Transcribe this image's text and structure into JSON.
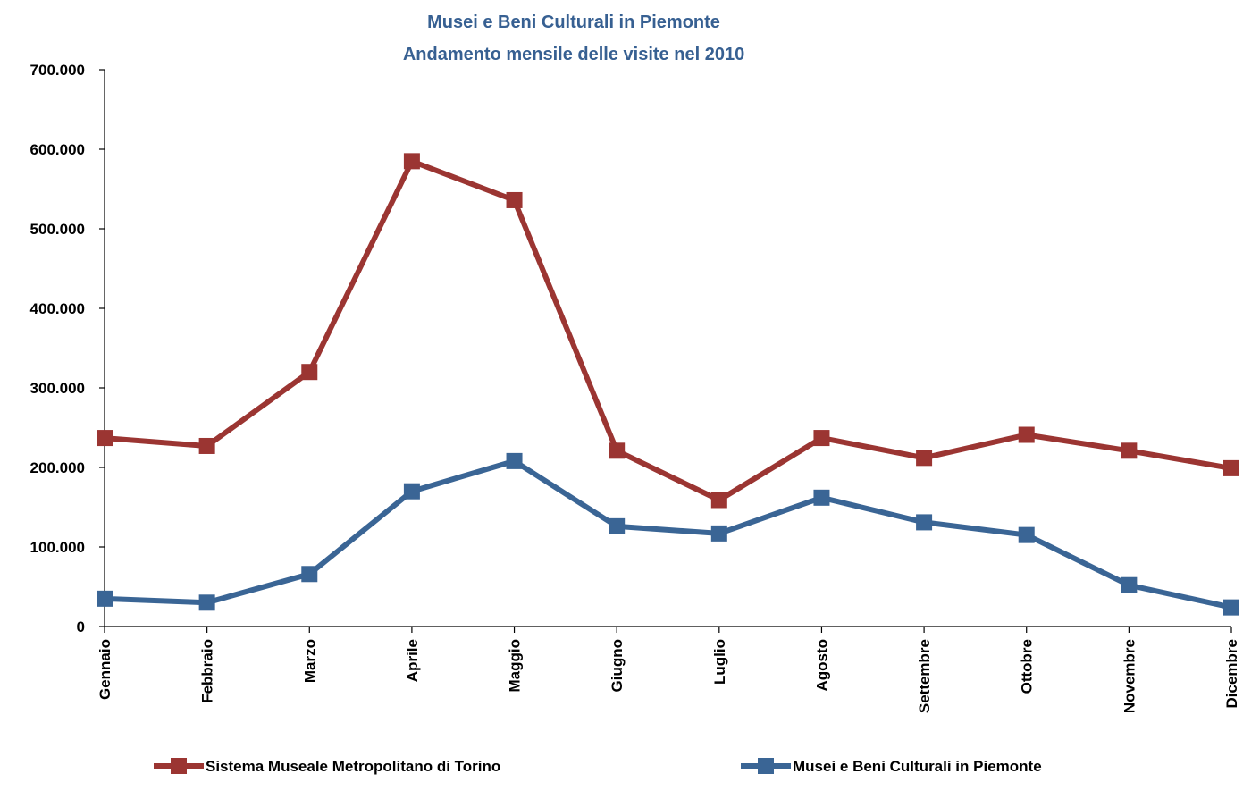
{
  "chart_data": {
    "type": "line",
    "title": "Musei e Beni Culturali in Piemonte",
    "subtitle": "Andamento mensile delle visite nel 2010",
    "xlabel": "",
    "ylabel": "",
    "categories": [
      "Gennaio",
      "Febbraio",
      "Marzo",
      "Aprile",
      "Maggio",
      "Giugno",
      "Luglio",
      "Agosto",
      "Settembre",
      "Ottobre",
      "Novembre",
      "Dicembre"
    ],
    "ylim": [
      0,
      700000
    ],
    "yticks": [
      0,
      100000,
      200000,
      300000,
      400000,
      500000,
      600000,
      700000
    ],
    "ytick_labels": [
      "0",
      "100.000",
      "200.000",
      "300.000",
      "400.000",
      "500.000",
      "600.000",
      "700.000"
    ],
    "grid": false,
    "legend_position": "bottom",
    "series": [
      {
        "name": "Sistema Museale Metropolitano di Torino",
        "color": "#9B3532",
        "marker": "square",
        "values": [
          237000,
          227000,
          320000,
          585000,
          536000,
          221000,
          159000,
          237000,
          212000,
          241000,
          221000,
          199000
        ]
      },
      {
        "name": "Musei e Beni Culturali in Piemonte",
        "color": "#3A6595",
        "marker": "square",
        "values": [
          35000,
          30000,
          66000,
          170000,
          208000,
          126000,
          117000,
          162000,
          131000,
          115000,
          52000,
          24000
        ]
      }
    ]
  },
  "colors": {
    "title": "#376092",
    "axis": "#000000"
  }
}
